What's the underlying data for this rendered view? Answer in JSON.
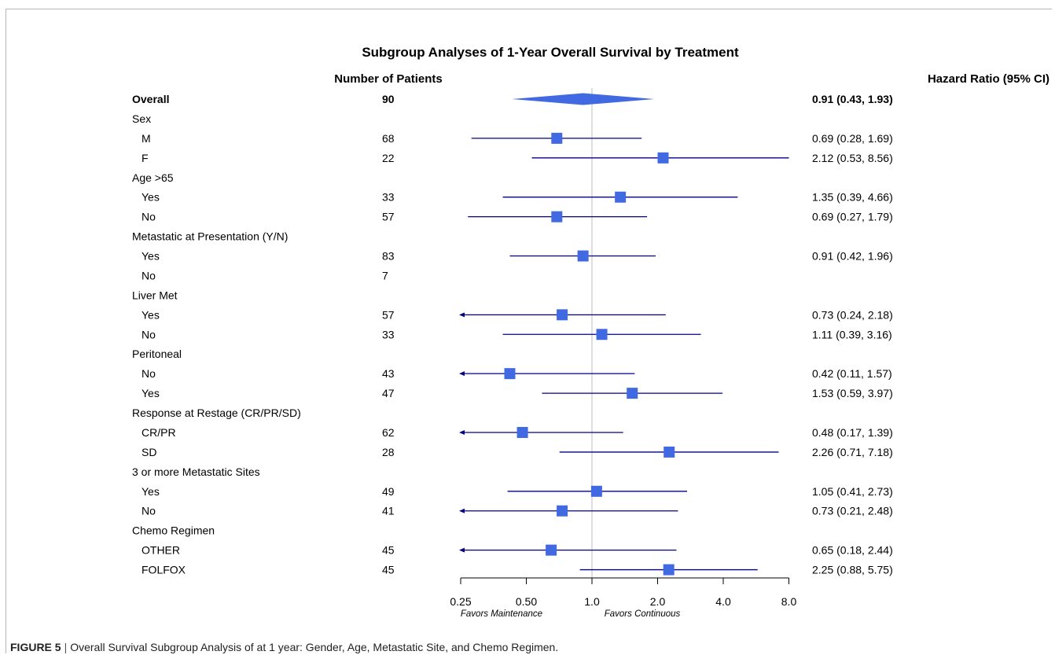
{
  "figure": {
    "label": "FIGURE 5",
    "separator": "|",
    "caption": "Overall Survival Subgroup Analysis of at 1 year: Gender, Age, Metastatic Site, and Chemo Regimen."
  },
  "chart_data": {
    "type": "forest",
    "title": "Subgroup Analyses of 1-Year Overall Survival by Treatment",
    "column_headers": {
      "n": "Number of Patients",
      "hr": "Hazard Ratio (95% CI)"
    },
    "x_scale": "log2",
    "xlim": [
      0.25,
      8.0
    ],
    "x_ticks": [
      0.25,
      0.5,
      1.0,
      2.0,
      4.0,
      8.0
    ],
    "x_tick_labels": [
      "0.25",
      "0.50",
      "1.0",
      "2.0",
      "4.0",
      "8.0"
    ],
    "reference_line": 1.0,
    "favors_left": "Favors Maintenance",
    "favors_right": "Favors Continuous",
    "colors": {
      "marker": "#4169e1",
      "ci_line": "#00008b",
      "ref_line": "#c8c8c8",
      "axis": "#000000"
    },
    "rows": [
      {
        "label": "Overall",
        "kind": "overall",
        "n": "90",
        "hr": 0.91,
        "lo": 0.43,
        "hi": 1.93,
        "hr_text": "0.91 (0.43, 1.93)"
      },
      {
        "label": "Sex",
        "kind": "group"
      },
      {
        "label": "M",
        "kind": "sub",
        "n": "68",
        "hr": 0.69,
        "lo": 0.28,
        "hi": 1.69,
        "hr_text": "0.69 (0.28, 1.69)"
      },
      {
        "label": "F",
        "kind": "sub",
        "n": "22",
        "hr": 2.12,
        "lo": 0.53,
        "hi": 8.56,
        "hr_text": "2.12 (0.53, 8.56)"
      },
      {
        "label": "Age >65",
        "kind": "group"
      },
      {
        "label": "Yes",
        "kind": "sub",
        "n": "33",
        "hr": 1.35,
        "lo": 0.39,
        "hi": 4.66,
        "hr_text": "1.35 (0.39, 4.66)"
      },
      {
        "label": "No",
        "kind": "sub",
        "n": "57",
        "hr": 0.69,
        "lo": 0.27,
        "hi": 1.79,
        "hr_text": "0.69 (0.27, 1.79)"
      },
      {
        "label": "Metastatic at Presentation (Y/N)",
        "kind": "group"
      },
      {
        "label": "Yes",
        "kind": "sub",
        "n": "83",
        "hr": 0.91,
        "lo": 0.42,
        "hi": 1.96,
        "hr_text": "0.91 (0.42, 1.96)"
      },
      {
        "label": "No",
        "kind": "sub",
        "n": "7"
      },
      {
        "label": "Liver Met",
        "kind": "group"
      },
      {
        "label": "Yes",
        "kind": "sub",
        "n": "57",
        "hr": 0.73,
        "lo": 0.24,
        "hi": 2.18,
        "hr_text": "0.73 (0.24, 2.18)"
      },
      {
        "label": "No",
        "kind": "sub",
        "n": "33",
        "hr": 1.11,
        "lo": 0.39,
        "hi": 3.16,
        "hr_text": "1.11 (0.39, 3.16)"
      },
      {
        "label": "Peritoneal",
        "kind": "group"
      },
      {
        "label": "No",
        "kind": "sub",
        "n": "43",
        "hr": 0.42,
        "lo": 0.11,
        "hi": 1.57,
        "hr_text": "0.42 (0.11, 1.57)"
      },
      {
        "label": "Yes",
        "kind": "sub",
        "n": "47",
        "hr": 1.53,
        "lo": 0.59,
        "hi": 3.97,
        "hr_text": "1.53 (0.59, 3.97)"
      },
      {
        "label": "Response at Restage (CR/PR/SD)",
        "kind": "group"
      },
      {
        "label": "CR/PR",
        "kind": "sub",
        "n": "62",
        "hr": 0.48,
        "lo": 0.17,
        "hi": 1.39,
        "hr_text": "0.48 (0.17, 1.39)"
      },
      {
        "label": "SD",
        "kind": "sub",
        "n": "28",
        "hr": 2.26,
        "lo": 0.71,
        "hi": 7.18,
        "hr_text": "2.26 (0.71, 7.18)"
      },
      {
        "label": "3 or more Metastatic Sites",
        "kind": "group"
      },
      {
        "label": "Yes",
        "kind": "sub",
        "n": "49",
        "hr": 1.05,
        "lo": 0.41,
        "hi": 2.73,
        "hr_text": "1.05 (0.41, 2.73)"
      },
      {
        "label": "No",
        "kind": "sub",
        "n": "41",
        "hr": 0.73,
        "lo": 0.21,
        "hi": 2.48,
        "hr_text": "0.73 (0.21, 2.48)"
      },
      {
        "label": "Chemo Regimen",
        "kind": "group"
      },
      {
        "label": "OTHER",
        "kind": "sub",
        "n": "45",
        "hr": 0.65,
        "lo": 0.18,
        "hi": 2.44,
        "hr_text": "0.65 (0.18, 2.44)"
      },
      {
        "label": "FOLFOX",
        "kind": "sub",
        "n": "45",
        "hr": 2.25,
        "lo": 0.88,
        "hi": 5.75,
        "hr_text": "2.25 (0.88, 5.75)"
      }
    ]
  }
}
